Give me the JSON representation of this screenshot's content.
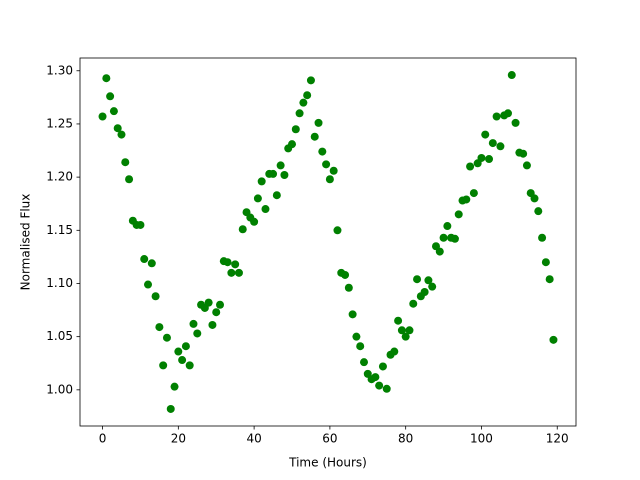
{
  "chart_data": {
    "type": "scatter",
    "x_label": "Time (Hours)",
    "y_label": "Normalised Flux",
    "color": "#008000",
    "x": [
      0,
      1,
      2,
      3,
      4,
      5,
      6,
      7,
      8,
      9,
      10,
      11,
      12,
      13,
      14,
      15,
      16,
      17,
      18,
      19,
      20,
      21,
      22,
      23,
      24,
      25,
      26,
      27,
      28,
      29,
      30,
      31,
      32,
      33,
      34,
      35,
      36,
      37,
      38,
      39,
      40,
      41,
      42,
      43,
      44,
      45,
      46,
      47,
      48,
      49,
      50,
      51,
      52,
      53,
      54,
      55,
      56,
      57,
      58,
      59,
      60,
      61,
      62,
      63,
      64,
      65,
      66,
      67,
      68,
      69,
      70,
      71,
      72,
      73,
      74,
      75,
      76,
      77,
      78,
      79,
      80,
      81,
      82,
      83,
      84,
      85,
      86,
      87,
      88,
      89,
      90,
      91,
      92,
      93,
      94,
      95,
      96,
      97,
      98,
      99,
      100,
      101,
      102,
      103,
      104,
      105,
      106,
      107,
      108,
      109,
      110,
      111,
      112,
      113,
      114,
      115,
      116,
      117,
      118,
      119
    ],
    "values": [
      1.257,
      1.293,
      1.276,
      1.262,
      1.246,
      1.24,
      1.214,
      1.198,
      1.159,
      1.155,
      1.155,
      1.123,
      1.099,
      1.119,
      1.088,
      1.059,
      1.023,
      1.049,
      0.982,
      1.003,
      1.036,
      1.028,
      1.041,
      1.023,
      1.062,
      1.053,
      1.08,
      1.077,
      1.082,
      1.061,
      1.073,
      1.08,
      1.121,
      1.12,
      1.11,
      1.118,
      1.11,
      1.151,
      1.167,
      1.162,
      1.158,
      1.18,
      1.196,
      1.17,
      1.203,
      1.203,
      1.183,
      1.211,
      1.202,
      1.227,
      1.231,
      1.245,
      1.26,
      1.27,
      1.277,
      1.291,
      1.238,
      1.251,
      1.224,
      1.212,
      1.198,
      1.206,
      1.15,
      1.11,
      1.108,
      1.096,
      1.071,
      1.05,
      1.041,
      1.026,
      1.015,
      1.01,
      1.012,
      1.004,
      1.022,
      1.001,
      1.033,
      1.036,
      1.065,
      1.056,
      1.05,
      1.056,
      1.081,
      1.104,
      1.088,
      1.092,
      1.103,
      1.097,
      1.135,
      1.13,
      1.143,
      1.154,
      1.143,
      1.142,
      1.165,
      1.178,
      1.179,
      1.21,
      1.185,
      1.213,
      1.218,
      1.24,
      1.217,
      1.232,
      1.257,
      1.229,
      1.258,
      1.26,
      1.296,
      1.251,
      1.223,
      1.222,
      1.211,
      1.185,
      1.18,
      1.168,
      1.143,
      1.12,
      1.104,
      1.047
    ],
    "xlim": [
      -5.95,
      124.95
    ],
    "ylim": [
      0.966,
      1.312
    ],
    "xticks": [
      0,
      20,
      40,
      60,
      80,
      100,
      120
    ],
    "yticks": [
      {
        "value": 1.0,
        "label": "1.00"
      },
      {
        "value": 1.05,
        "label": "1.05"
      },
      {
        "value": 1.1,
        "label": "1.10"
      },
      {
        "value": 1.15,
        "label": "1.15"
      },
      {
        "value": 1.2,
        "label": "1.20"
      },
      {
        "value": 1.25,
        "label": "1.25"
      },
      {
        "value": 1.3,
        "label": "1.30"
      }
    ]
  }
}
